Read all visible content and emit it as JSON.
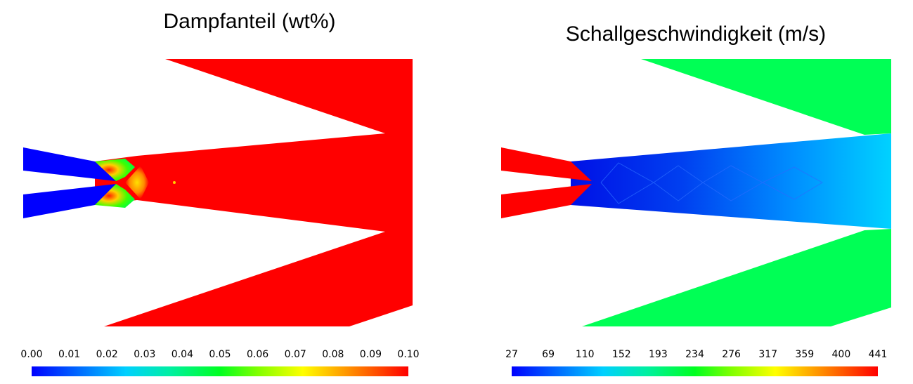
{
  "panels": [
    {
      "title": "Dampfanteil (wt%)",
      "colorbar_ticks": [
        "0.00",
        "0.01",
        "0.02",
        "0.03",
        "0.04",
        "0.05",
        "0.06",
        "0.07",
        "0.08",
        "0.09",
        "0.10"
      ]
    },
    {
      "title": "Schallgeschwindigkeit (m/s)",
      "colorbar_ticks": [
        "27",
        "69",
        "110",
        "152",
        "193",
        "234",
        "276",
        "317",
        "359",
        "400",
        "441"
      ]
    }
  ],
  "colors": {
    "low": "#0000ff",
    "mid": "#00ff40",
    "high": "#ff0000",
    "secondary_flow": "#00ff55",
    "mixing_core": "#1a2fe6"
  }
}
